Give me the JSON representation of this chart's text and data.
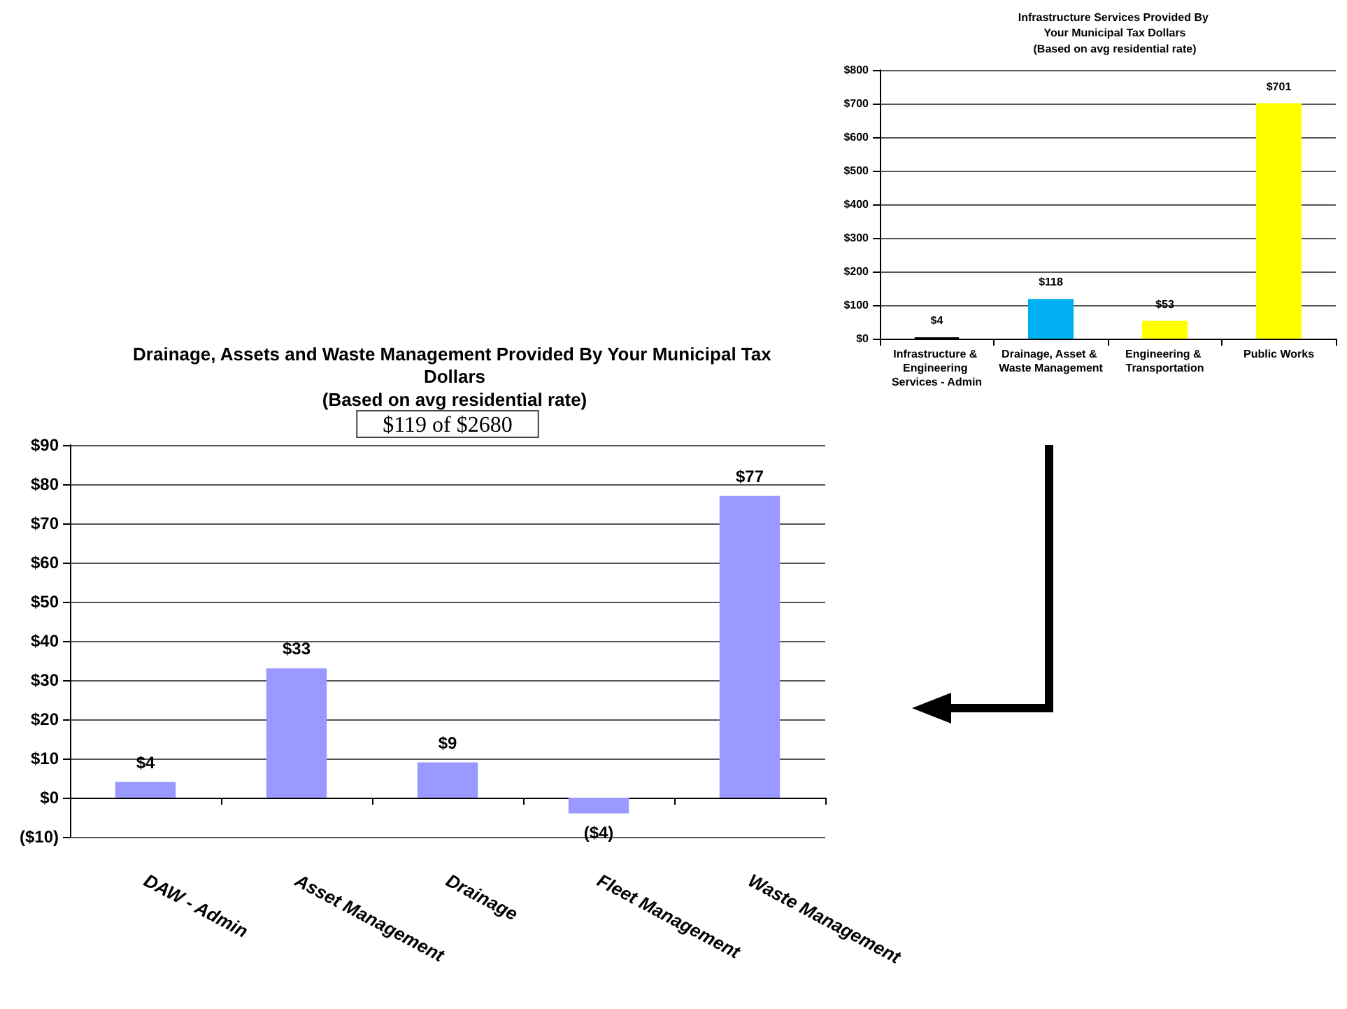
{
  "chart_data": [
    {
      "type": "bar",
      "title": "Infrastructure Services Provided By Your Municipal Tax Dollars",
      "subtitle": "(Based on avg residential rate)",
      "categories": [
        "Infrastructure & Engineering Services - Admin",
        "Drainage, Asset & Waste Management",
        "Engineering & Transportation",
        "Public Works"
      ],
      "values": [
        4,
        118,
        53,
        701
      ],
      "colors": [
        "#000000",
        "#00b0f0",
        "#ffff00",
        "#ffff00"
      ],
      "value_labels": [
        "$4",
        "$118",
        "$53",
        "$701"
      ],
      "ylim": [
        0,
        800
      ],
      "yticks": [
        {
          "value": 0,
          "label": "$0"
        },
        {
          "value": 100,
          "label": "$100"
        },
        {
          "value": 200,
          "label": "$200"
        },
        {
          "value": 300,
          "label": "$300"
        },
        {
          "value": 400,
          "label": "$400"
        },
        {
          "value": 500,
          "label": "$500"
        },
        {
          "value": 600,
          "label": "$600"
        },
        {
          "value": 700,
          "label": "$700"
        },
        {
          "value": 800,
          "label": "$800"
        }
      ],
      "grid": "y"
    },
    {
      "type": "bar",
      "title": "Drainage, Assets and Waste Management Provided By Your Municipal Tax Dollars",
      "subtitle": "(Based on avg residential rate)",
      "annotations": [
        "$119 of $2680"
      ],
      "categories": [
        "DAW - Admin",
        "Asset Management",
        "Drainage",
        "Fleet Management",
        "Waste Management"
      ],
      "values": [
        4,
        33,
        9,
        -4,
        77
      ],
      "color": "#9999ff",
      "value_labels": [
        "$4",
        "$33",
        "$9",
        "($4)",
        "$77"
      ],
      "ylim": [
        -10,
        90
      ],
      "yticks": [
        {
          "value": -10,
          "label": "($10)"
        },
        {
          "value": 0,
          "label": "$0"
        },
        {
          "value": 10,
          "label": "$10"
        },
        {
          "value": 20,
          "label": "$20"
        },
        {
          "value": 30,
          "label": "$30"
        },
        {
          "value": 40,
          "label": "$40"
        },
        {
          "value": 50,
          "label": "$50"
        },
        {
          "value": 60,
          "label": "$60"
        },
        {
          "value": 70,
          "label": "$70"
        },
        {
          "value": 80,
          "label": "$80"
        },
        {
          "value": 90,
          "label": "$90"
        }
      ],
      "grid": "y"
    }
  ]
}
